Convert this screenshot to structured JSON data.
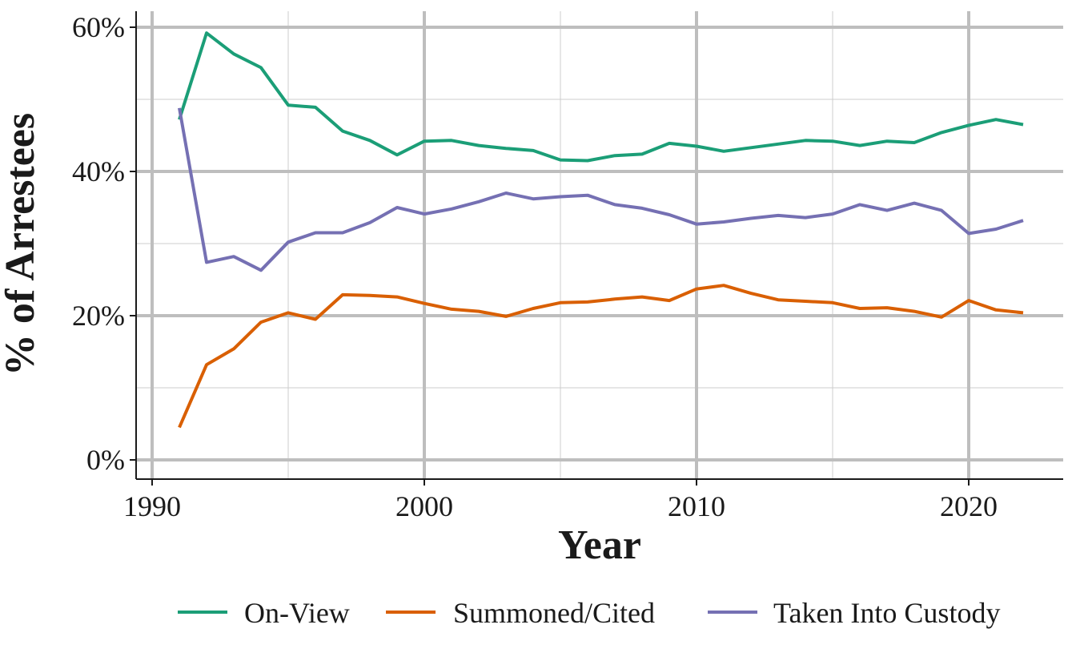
{
  "chart_data": {
    "type": "line",
    "title": "",
    "xlabel": "Year",
    "ylabel": "% of Arrestees",
    "xlim": [
      1990,
      2022
    ],
    "ylim": [
      0,
      60
    ],
    "x_ticks": [
      1990,
      2000,
      2010,
      2020
    ],
    "y_ticks": [
      0,
      20,
      40,
      60
    ],
    "y_tick_labels": [
      "0%",
      "20%",
      "40%",
      "60%"
    ],
    "grid": true,
    "legend_position": "bottom",
    "x": [
      1991,
      1992,
      1993,
      1994,
      1995,
      1996,
      1997,
      1998,
      1999,
      2000,
      2001,
      2002,
      2003,
      2004,
      2005,
      2006,
      2007,
      2008,
      2009,
      2010,
      2011,
      2012,
      2013,
      2014,
      2015,
      2016,
      2017,
      2018,
      2019,
      2020,
      2021,
      2022
    ],
    "series": [
      {
        "name": "On-View",
        "color": "#1b9e77",
        "values": [
          47.2,
          59.2,
          56.3,
          54.4,
          49.2,
          48.9,
          45.6,
          44.3,
          42.3,
          44.2,
          44.3,
          43.6,
          43.2,
          42.9,
          41.6,
          41.5,
          42.2,
          42.4,
          43.9,
          43.5,
          42.8,
          43.3,
          43.8,
          44.3,
          44.2,
          43.6,
          44.2,
          44.0,
          45.4,
          46.4,
          47.2,
          46.5
        ]
      },
      {
        "name": "Summoned/Cited",
        "color": "#d95f02",
        "values": [
          4.5,
          13.2,
          15.4,
          19.1,
          20.4,
          19.5,
          22.9,
          22.8,
          22.6,
          21.7,
          20.9,
          20.6,
          19.9,
          21.0,
          21.8,
          21.9,
          22.3,
          22.6,
          22.1,
          23.7,
          24.2,
          23.1,
          22.2,
          22.0,
          21.8,
          21.0,
          21.1,
          20.6,
          19.8,
          22.1,
          20.8,
          20.4
        ]
      },
      {
        "name": "Taken Into Custody",
        "color": "#7570b3",
        "values": [
          48.8,
          27.4,
          28.2,
          26.3,
          30.2,
          31.5,
          31.5,
          32.9,
          35.0,
          34.1,
          34.8,
          35.8,
          37.0,
          36.2,
          36.5,
          36.7,
          35.4,
          34.9,
          34.0,
          32.7,
          33.0,
          33.5,
          33.9,
          33.6,
          34.1,
          35.4,
          34.6,
          35.6,
          34.6,
          31.4,
          32.0,
          33.2
        ]
      }
    ]
  }
}
